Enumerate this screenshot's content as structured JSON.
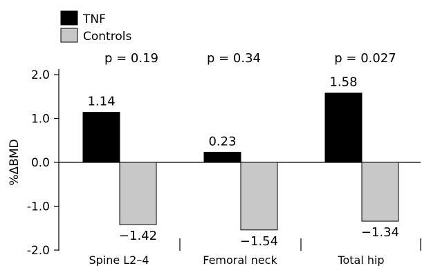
{
  "chart_data": {
    "type": "bar",
    "categories": [
      "Spine L2–4",
      "Femoral neck",
      "Total hip"
    ],
    "series": [
      {
        "name": "TNF",
        "values": [
          1.14,
          0.23,
          1.58
        ],
        "labels": [
          "1.14",
          "0.23",
          "1.58"
        ],
        "color": "#000000"
      },
      {
        "name": "Controls",
        "values": [
          -1.42,
          -1.54,
          -1.34
        ],
        "labels": [
          "−1.42",
          "−1.54",
          "−1.34"
        ],
        "color": "#c8c8c8"
      }
    ],
    "p_values": [
      "p = 0.19",
      "p = 0.34",
      "p = 0.027"
    ],
    "ylabel": "%ΔBMD",
    "ylim": [
      -2.0,
      2.0
    ],
    "yticks": [
      2.0,
      1.0,
      0.0,
      -1.0,
      -2.0
    ],
    "ytick_labels": [
      "2.0",
      "1.0",
      "0.0",
      "-1.0",
      "-2.0"
    ],
    "legend_position": "top-left",
    "grid": false
  }
}
